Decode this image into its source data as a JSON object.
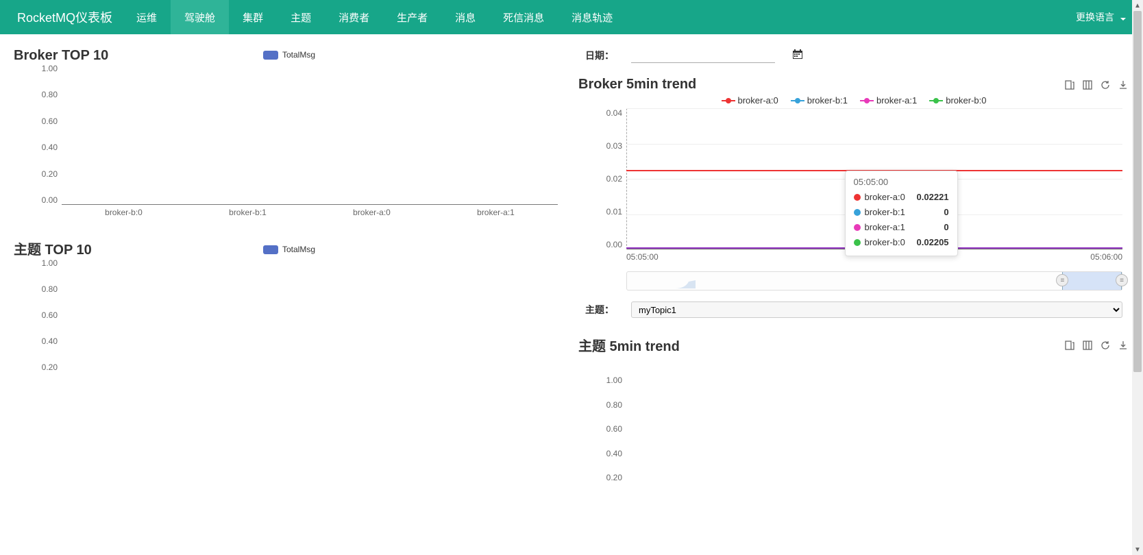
{
  "nav": {
    "brand": "RocketMQ仪表板",
    "items": [
      "运维",
      "驾驶舱",
      "集群",
      "主题",
      "消费者",
      "生产者",
      "消息",
      "死信消息",
      "消息轨迹"
    ],
    "active_index": 1,
    "lang_label": "更换语言",
    "bg_color": "#17a689",
    "active_bg": "#2fb498"
  },
  "date": {
    "label": "日期：",
    "value": ""
  },
  "broker_top10": {
    "title": "Broker TOP 10",
    "type": "bar",
    "legend_label": "TotalMsg",
    "legend_color": "#5470c6",
    "y_ticks": [
      "1.00",
      "0.80",
      "0.60",
      "0.40",
      "0.20",
      "0.00"
    ],
    "x_categories": [
      "broker-b:0",
      "broker-b:1",
      "broker-a:0",
      "broker-a:1"
    ]
  },
  "broker_trend": {
    "title": "Broker 5min trend",
    "type": "line",
    "y_ticks": [
      "0.04",
      "0.03",
      "0.02",
      "0.01",
      "0.00"
    ],
    "x_labels": [
      "05:05:00",
      "05:06:00"
    ],
    "series": [
      {
        "name": "broker-a:0",
        "color": "#ee3333",
        "value_frac": 0.555
      },
      {
        "name": "broker-b:1",
        "color": "#37a2da",
        "value_frac": 0.0
      },
      {
        "name": "broker-a:1",
        "color": "#e83ab9",
        "value_frac": 0.0
      },
      {
        "name": "broker-b:0",
        "color": "#3ac24a",
        "value_frac": 0.551
      }
    ],
    "line_colors_visible": {
      "red": "#ee3333",
      "purple": "#9030c0"
    },
    "tooltip": {
      "time": "05:05:00",
      "rows": [
        {
          "name": "broker-a:0",
          "color": "#ee3333",
          "value": "0.02221"
        },
        {
          "name": "broker-b:1",
          "color": "#37a2da",
          "value": "0"
        },
        {
          "name": "broker-a:1",
          "color": "#e83ab9",
          "value": "0"
        },
        {
          "name": "broker-b:0",
          "color": "#3ac24a",
          "value": "0.02205"
        }
      ]
    },
    "zoom": {
      "sel_start_pct": 88,
      "sel_end_pct": 100
    }
  },
  "topic_row": {
    "label": "主题：",
    "selected": "myTopic1"
  },
  "topic_top10": {
    "title": "主题 TOP 10",
    "legend_label": "TotalMsg",
    "legend_color": "#5470c6",
    "y_ticks": [
      "1.00",
      "0.80",
      "0.60",
      "0.40",
      "0.20"
    ]
  },
  "topic_trend": {
    "title": "主题 5min trend",
    "y_ticks": [
      "1.00",
      "0.80",
      "0.60",
      "0.40",
      "0.20"
    ]
  },
  "scrollbar": {
    "thumb_top_pct": 2,
    "thumb_height_pct": 65
  }
}
